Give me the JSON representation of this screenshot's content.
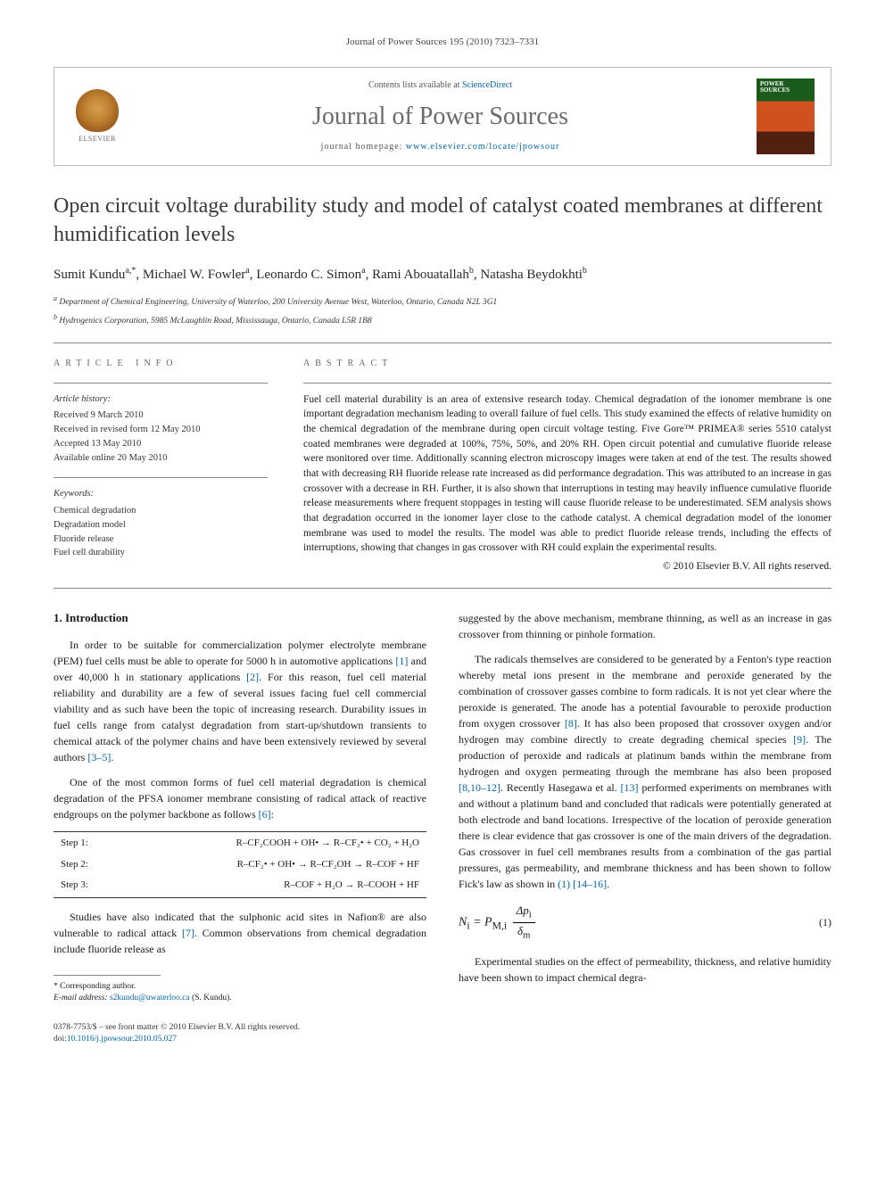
{
  "top_citation": "Journal of Power Sources 195 (2010) 7323–7331",
  "header": {
    "contents_prefix": "Contents lists available at ",
    "contents_link": "ScienceDirect",
    "journal_name": "Journal of Power Sources",
    "homepage_prefix": "journal homepage: ",
    "homepage_url": "www.elsevier.com/locate/jpowsour",
    "publisher_label": "ELSEVIER",
    "cover_text": "POWER SOURCES"
  },
  "title": "Open circuit voltage durability study and model of catalyst coated membranes at different humidification levels",
  "authors_html": "Sumit Kundu<sup>a,*</sup>, Michael W. Fowler<sup>a</sup>, Leonardo C. Simon<sup>a</sup>, Rami Abouatallah<sup>b</sup>, Natasha Beydokhti<sup>b</sup>",
  "affiliations": {
    "a": "Department of Chemical Engineering, University of Waterloo, 200 University Avenue West, Waterloo, Ontario, Canada N2L 3G1",
    "b": "Hydrogenics Corporation, 5985 McLaughlin Road, Mississauga, Ontario, Canada L5R 1B8"
  },
  "article_info": {
    "heading": "ARTICLE INFO",
    "history_label": "Article history:",
    "history": [
      "Received 9 March 2010",
      "Received in revised form 12 May 2010",
      "Accepted 13 May 2010",
      "Available online 20 May 2010"
    ],
    "keywords_label": "Keywords:",
    "keywords": [
      "Chemical degradation",
      "Degradation model",
      "Fluoride release",
      "Fuel cell durability"
    ]
  },
  "abstract": {
    "heading": "ABSTRACT",
    "text": "Fuel cell material durability is an area of extensive research today. Chemical degradation of the ionomer membrane is one important degradation mechanism leading to overall failure of fuel cells. This study examined the effects of relative humidity on the chemical degradation of the membrane during open circuit voltage testing. Five Gore™ PRIMEA® series 5510 catalyst coated membranes were degraded at 100%, 75%, 50%, and 20% RH. Open circuit potential and cumulative fluoride release were monitored over time. Additionally scanning electron microscopy images were taken at end of the test. The results showed that with decreasing RH fluoride release rate increased as did performance degradation. This was attributed to an increase in gas crossover with a decrease in RH. Further, it is also shown that interruptions in testing may heavily influence cumulative fluoride release measurements where frequent stoppages in testing will cause fluoride release to be underestimated. SEM analysis shows that degradation occurred in the ionomer layer close to the cathode catalyst. A chemical degradation model of the ionomer membrane was used to model the results. The model was able to predict fluoride release trends, including the effects of interruptions, showing that changes in gas crossover with RH could explain the experimental results.",
    "copyright": "© 2010 Elsevier B.V. All rights reserved."
  },
  "body": {
    "intro_heading": "1. Introduction",
    "left": {
      "p1_a": "In order to be suitable for commercialization polymer electrolyte membrane (PEM) fuel cells must be able to operate for 5000 h in automotive applications ",
      "p1_c1": "[1]",
      "p1_b": " and over 40,000 h in stationary applications ",
      "p1_c2": "[2]",
      "p1_c": ". For this reason, fuel cell material reliability and durability are a few of several issues facing fuel cell commercial viability and as such have been the topic of increasing research. Durability issues in fuel cells range from catalyst degradation from start-up/shutdown transients to chemical attack of the polymer chains and have been extensively reviewed by several authors ",
      "p1_c3": "[3–5]",
      "p1_d": ".",
      "p2_a": "One of the most common forms of fuel cell material degradation is chemical degradation of the PFSA ionomer membrane consisting of radical attack of reactive endgroups on the polymer backbone as follows ",
      "p2_c1": "[6]",
      "p2_b": ":",
      "steps": [
        {
          "label": "Step 1:",
          "rxn": "R–CF₂COOH + OH• → R–CF₂• + CO₂ + H₂O"
        },
        {
          "label": "Step 2:",
          "rxn": "R–CF₂• + OH• → R–CF₂OH → R–COF + HF"
        },
        {
          "label": "Step 3:",
          "rxn": "R–COF + H₂O → R–COOH + HF"
        }
      ],
      "p3_a": "Studies have also indicated that the sulphonic acid sites in Nafion® are also vulnerable to radical attack ",
      "p3_c1": "[7]",
      "p3_b": ". Common observations from chemical degradation include fluoride release as"
    },
    "right": {
      "p1": "suggested by the above mechanism, membrane thinning, as well as an increase in gas crossover from thinning or pinhole formation.",
      "p2_a": "The radicals themselves are considered to be generated by a Fenton's type reaction whereby metal ions present in the membrane and peroxide generated by the combination of crossover gasses combine to form radicals. It is not yet clear where the peroxide is generated. The anode has a potential favourable to peroxide production from oxygen crossover ",
      "p2_c1": "[8]",
      "p2_b": ". It has also been proposed that crossover oxygen and/or hydrogen may combine directly to create degrading chemical species ",
      "p2_c2": "[9]",
      "p2_c": ". The production of peroxide and radicals at platinum bands within the membrane from hydrogen and oxygen permeating through the membrane has also been proposed ",
      "p2_c3": "[8,10–12]",
      "p2_d": ". Recently Hasegawa et al. ",
      "p2_c4": "[13]",
      "p2_e": " performed experiments on membranes with and without a platinum band and concluded that radicals were potentially generated at both electrode and band locations. Irrespective of the location of peroxide generation there is clear evidence that gas crossover is one of the main drivers of the degradation. Gas crossover in fuel cell membranes results from a combination of the gas partial pressures, gas permeability, and membrane thickness and has been shown to follow Fick's law as shown in ",
      "p2_c5": "(1)",
      "p2_f": " ",
      "p2_c6": "[14–16]",
      "p2_g": ".",
      "eq_num": "(1)",
      "p3": "Experimental studies on the effect of permeability, thickness, and relative humidity have been shown to impact chemical degra-"
    }
  },
  "footnote": {
    "corr": "* Corresponding author.",
    "email_label": "E-mail address: ",
    "email": "s2kundu@uwaterloo.ca",
    "email_who": " (S. Kundu)."
  },
  "bottom": {
    "issn_line": "0378-7753/$ – see front matter © 2010 Elsevier B.V. All rights reserved.",
    "doi_label": "doi:",
    "doi": "10.1016/j.jpowsour.2010.05.027"
  },
  "colors": {
    "link": "#0066aa",
    "heading_gray": "#6a6a6a",
    "rule": "#888888",
    "text": "#1a1a1a"
  }
}
